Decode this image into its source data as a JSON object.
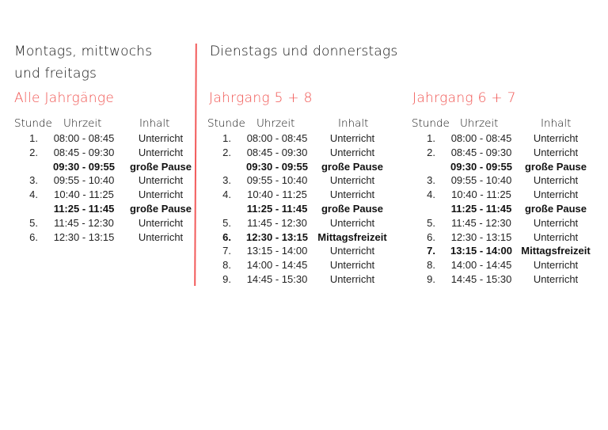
{
  "colors": {
    "accent": "#f0524f",
    "divider": "#f25b5b"
  },
  "left": {
    "title_line1": "Montags, mittwochs",
    "title_line2": "und freitags",
    "subtitle": "Alle Jahrgänge"
  },
  "right": {
    "title": "Dienstags und donnerstags"
  },
  "headers": {
    "stunde": "Stunde",
    "uhrzeit": "Uhrzeit",
    "inhalt": "Inhalt"
  },
  "tables": [
    {
      "subtitle": "Alle Jahrgänge",
      "rows": [
        {
          "nr": "1.",
          "time": "08:00 - 08:45",
          "content": "Unterricht",
          "bold": false
        },
        {
          "nr": "2.",
          "time": "08:45 - 09:30",
          "content": "Unterricht",
          "bold": false
        },
        {
          "nr": "",
          "time": "09:30 - 09:55",
          "content": "große Pause",
          "bold": true
        },
        {
          "nr": "3.",
          "time": "09:55 - 10:40",
          "content": "Unterricht",
          "bold": false
        },
        {
          "nr": "4.",
          "time": "10:40 - 11:25",
          "content": "Unterricht",
          "bold": false
        },
        {
          "nr": "",
          "time": "11:25 - 11:45",
          "content": "große Pause",
          "bold": true
        },
        {
          "nr": "5.",
          "time": "11:45 - 12:30",
          "content": "Unterricht",
          "bold": false
        },
        {
          "nr": "6.",
          "time": "12:30 - 13:15",
          "content": "Unterricht",
          "bold": false
        }
      ]
    },
    {
      "subtitle": "Jahrgang 5 + 8",
      "rows": [
        {
          "nr": "1.",
          "time": "08:00 - 08:45",
          "content": "Unterricht",
          "bold": false
        },
        {
          "nr": "2.",
          "time": "08:45 - 09:30",
          "content": "Unterricht",
          "bold": false
        },
        {
          "nr": "",
          "time": "09:30 - 09:55",
          "content": "große Pause",
          "bold": true
        },
        {
          "nr": "3.",
          "time": "09:55 - 10:40",
          "content": "Unterricht",
          "bold": false
        },
        {
          "nr": "4.",
          "time": "10:40 - 11:25",
          "content": "Unterricht",
          "bold": false
        },
        {
          "nr": "",
          "time": "11:25 - 11:45",
          "content": "große Pause",
          "bold": true
        },
        {
          "nr": "5.",
          "time": "11:45 - 12:30",
          "content": "Unterricht",
          "bold": false
        },
        {
          "nr": "6.",
          "time": "12:30 - 13:15",
          "content": "Mittagsfreizeit",
          "bold": true
        },
        {
          "nr": "7.",
          "time": "13:15 - 14:00",
          "content": "Unterricht",
          "bold": false
        },
        {
          "nr": "8.",
          "time": "14:00 - 14:45",
          "content": "Unterricht",
          "bold": false
        },
        {
          "nr": "9.",
          "time": "14:45 - 15:30",
          "content": "Unterricht",
          "bold": false
        }
      ]
    },
    {
      "subtitle": "Jahrgang 6 + 7",
      "rows": [
        {
          "nr": "1.",
          "time": "08:00 - 08:45",
          "content": "Unterricht",
          "bold": false
        },
        {
          "nr": "2.",
          "time": "08:45 - 09:30",
          "content": "Unterricht",
          "bold": false
        },
        {
          "nr": "",
          "time": "09:30 - 09:55",
          "content": "große Pause",
          "bold": true
        },
        {
          "nr": "3.",
          "time": "09:55 - 10:40",
          "content": "Unterricht",
          "bold": false
        },
        {
          "nr": "4.",
          "time": "10:40 - 11:25",
          "content": "Unterricht",
          "bold": false
        },
        {
          "nr": "",
          "time": "11:25 - 11:45",
          "content": "große Pause",
          "bold": true
        },
        {
          "nr": "5.",
          "time": "11:45 - 12:30",
          "content": "Unterricht",
          "bold": false
        },
        {
          "nr": "6.",
          "time": "12:30 - 13:15",
          "content": "Unterricht",
          "bold": false
        },
        {
          "nr": "7.",
          "time": "13:15 - 14:00",
          "content": "Mittagsfreizeit",
          "bold": true
        },
        {
          "nr": "8.",
          "time": "14:00 - 14:45",
          "content": "Unterricht",
          "bold": false
        },
        {
          "nr": "9.",
          "time": "14:45 - 15:30",
          "content": "Unterricht",
          "bold": false
        }
      ]
    }
  ]
}
